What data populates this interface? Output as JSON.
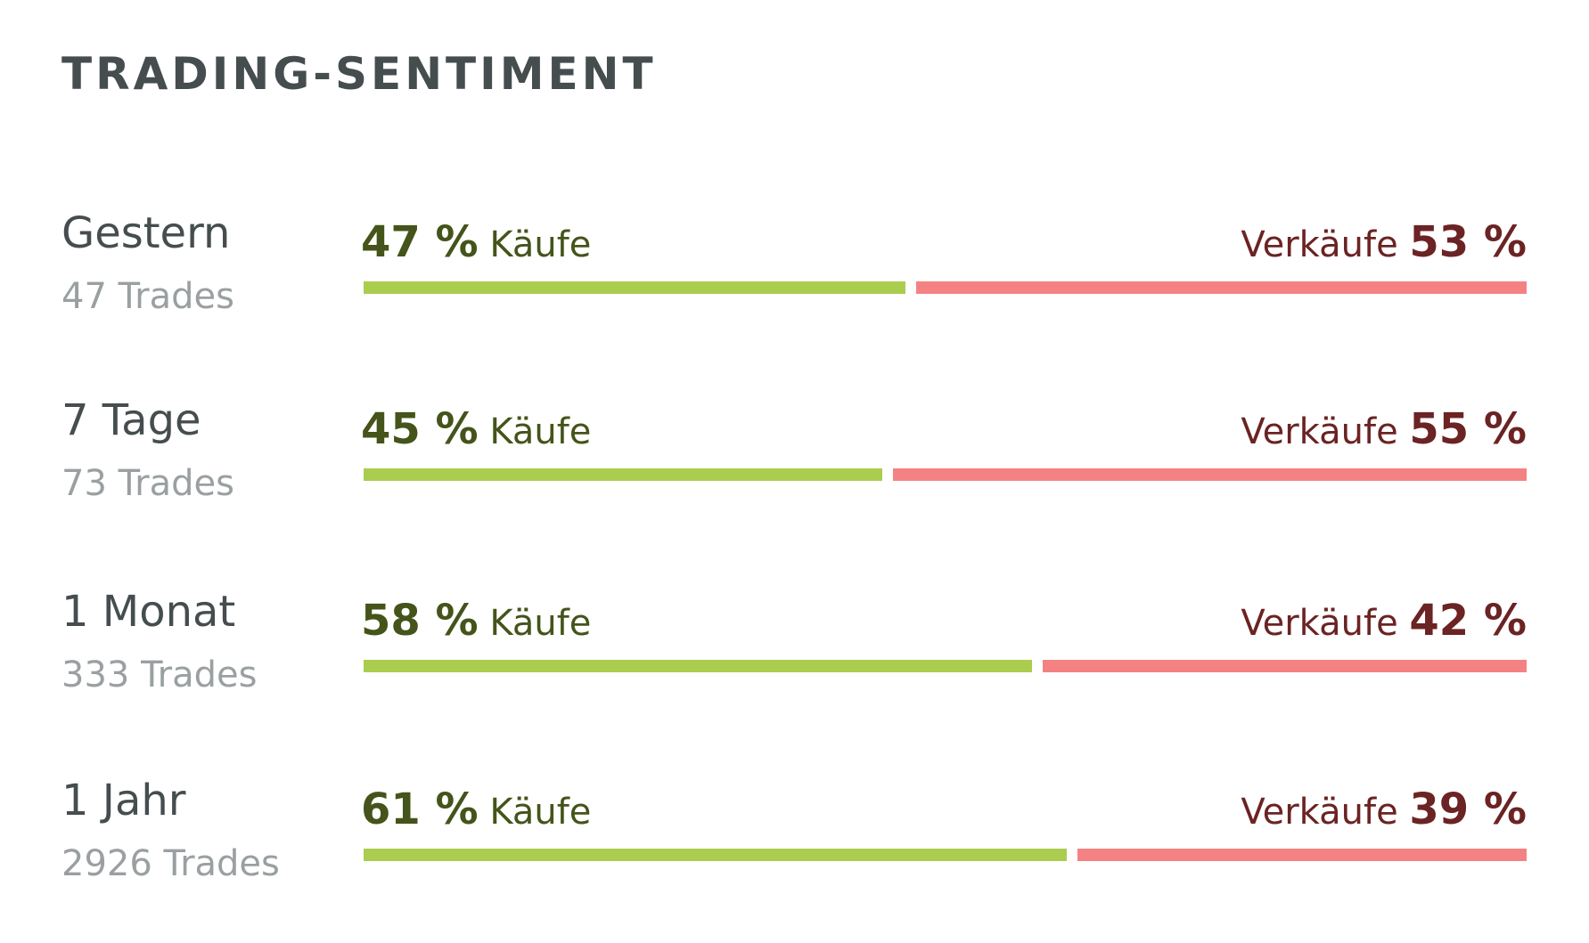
{
  "widget": {
    "title": "TRADING-SENTIMENT",
    "colors": {
      "buy_text": "#44541a",
      "sell_text": "#6b2323",
      "buy_bar": "#aacd50",
      "sell_bar": "#f48282"
    }
  },
  "rows": [
    {
      "period": "Gestern",
      "trades": "47 Trades",
      "buy_pct": "47 %",
      "buy_label": "Käufe",
      "sell_label": "Verkäufe",
      "sell_pct": "53 %",
      "buy_share": 47,
      "sell_share": 53
    },
    {
      "period": "7 Tage",
      "trades": "73 Trades",
      "buy_pct": "45 %",
      "buy_label": "Käufe",
      "sell_label": "Verkäufe",
      "sell_pct": "55 %",
      "buy_share": 45,
      "sell_share": 55
    },
    {
      "period": "1 Monat",
      "trades": "333 Trades",
      "buy_pct": "58 %",
      "buy_label": "Käufe",
      "sell_label": "Verkäufe",
      "sell_pct": "42 %",
      "buy_share": 58,
      "sell_share": 42
    },
    {
      "period": "1 Jahr",
      "trades": "2926 Trades",
      "buy_pct": "61 %",
      "buy_label": "Käufe",
      "sell_label": "Verkäufe",
      "sell_pct": "39 %",
      "buy_share": 61,
      "sell_share": 39
    }
  ]
}
